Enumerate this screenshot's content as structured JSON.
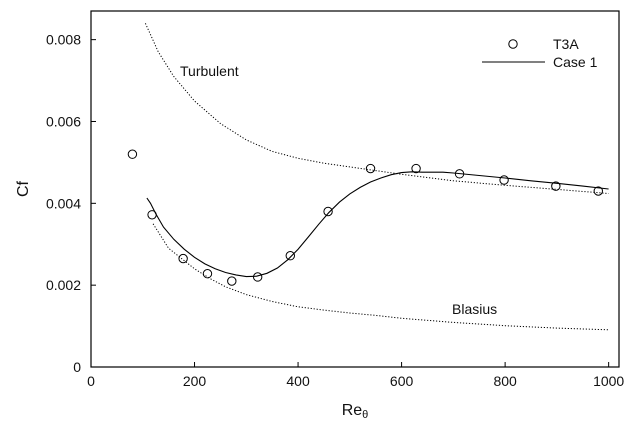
{
  "chart_data": {
    "type": "line",
    "xlabel": "Re",
    "xlabel_sub": "θ",
    "ylabel": "Cf",
    "xlim": [
      0,
      1020
    ],
    "ylim": [
      0,
      0.0087
    ],
    "x_ticks": [
      0,
      200,
      400,
      600,
      800,
      1000
    ],
    "x_tick_labels": [
      "0",
      "200",
      "400",
      "600",
      "800",
      "1000"
    ],
    "y_ticks": [
      0,
      0.002,
      0.004,
      0.006,
      0.008
    ],
    "y_tick_labels": [
      "0",
      "0.002",
      "0.004",
      "0.006",
      "0.008"
    ],
    "grid": false,
    "legend": {
      "position": "top-right",
      "entries": [
        {
          "label": "T3A",
          "marker": "circle"
        },
        {
          "label": "Case 1",
          "marker": "line"
        }
      ]
    },
    "series": [
      {
        "name": "T3A",
        "style": "markers",
        "x": [
          80,
          118,
          178,
          225,
          272,
          322,
          385,
          458,
          540,
          628,
          712,
          798,
          898,
          980
        ],
        "y": [
          0.0052,
          0.00372,
          0.00265,
          0.00228,
          0.0021,
          0.0022,
          0.00272,
          0.0038,
          0.00485,
          0.00485,
          0.00472,
          0.00457,
          0.00442,
          0.0043
        ]
      },
      {
        "name": "Case 1",
        "style": "solid",
        "x": [
          108,
          115,
          125,
          140,
          160,
          180,
          200,
          220,
          240,
          260,
          280,
          300,
          320,
          340,
          360,
          380,
          400,
          420,
          440,
          460,
          480,
          500,
          520,
          540,
          560,
          580,
          600,
          620,
          640,
          660,
          680,
          700,
          750,
          800,
          850,
          900,
          950,
          1000
        ],
        "y": [
          0.00413,
          0.004,
          0.00375,
          0.00342,
          0.00312,
          0.00288,
          0.00268,
          0.00252,
          0.0024,
          0.00231,
          0.00225,
          0.00221,
          0.00222,
          0.00229,
          0.00242,
          0.00262,
          0.00288,
          0.00318,
          0.00349,
          0.00378,
          0.00403,
          0.00423,
          0.00439,
          0.00452,
          0.00462,
          0.0047,
          0.00475,
          0.00477,
          0.00476,
          0.00476,
          0.00476,
          0.00474,
          0.00468,
          0.00462,
          0.00455,
          0.00449,
          0.00442,
          0.00435
        ]
      },
      {
        "name": "Turbulent",
        "style": "dotted",
        "x": [
          105,
          130,
          160,
          200,
          250,
          300,
          350,
          400,
          450,
          500,
          550,
          600,
          650,
          700,
          800,
          900,
          1000
        ],
        "y": [
          0.0084,
          0.0077,
          0.0071,
          0.0065,
          0.00595,
          0.00555,
          0.00527,
          0.0051,
          0.00498,
          0.00489,
          0.0048,
          0.00471,
          0.00463,
          0.00455,
          0.00444,
          0.00434,
          0.00424
        ]
      },
      {
        "name": "Blasius",
        "style": "dotted",
        "x": [
          120,
          150,
          180,
          200,
          230,
          260,
          300,
          350,
          400,
          450,
          500,
          550,
          600,
          700,
          800,
          900,
          1000
        ],
        "y": [
          0.0035,
          0.0029,
          0.0026,
          0.0024,
          0.00216,
          0.00196,
          0.00177,
          0.0016,
          0.00147,
          0.00139,
          0.00132,
          0.00126,
          0.00119,
          0.00109,
          0.00101,
          0.00095,
          0.00091
        ]
      }
    ],
    "annotations": [
      {
        "text": "Turbulent",
        "x": 175,
        "y": 0.00715
      },
      {
        "text": "Blasius",
        "x": 700,
        "y": 0.0014
      }
    ]
  }
}
